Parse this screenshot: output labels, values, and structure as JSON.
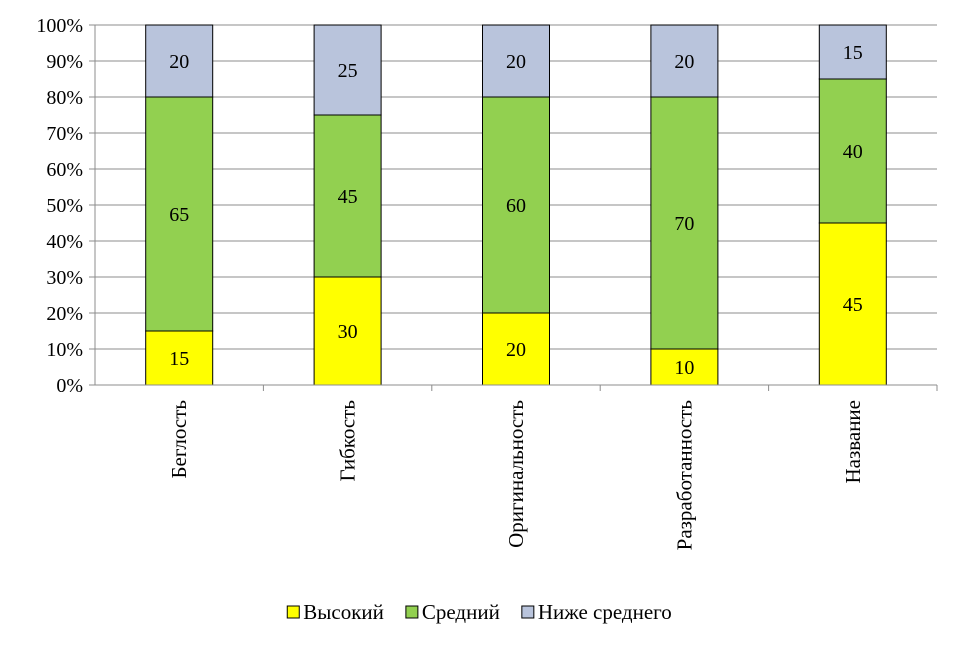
{
  "chart_data": {
    "type": "bar",
    "stacked": true,
    "categories": [
      "Беглость",
      "Гибкость",
      "Оригинальность",
      "Разработанность",
      "Название"
    ],
    "series": [
      {
        "name": "Высокий",
        "color": "#ffff00",
        "values": [
          15,
          30,
          20,
          10,
          45
        ]
      },
      {
        "name": "Средний",
        "color": "#92d050",
        "values": [
          65,
          45,
          60,
          70,
          40
        ]
      },
      {
        "name": "Ниже среднего",
        "color": "#b9c4dc",
        "values": [
          20,
          25,
          20,
          20,
          15
        ]
      }
    ],
    "yticks": [
      "0%",
      "10%",
      "20%",
      "30%",
      "40%",
      "50%",
      "60%",
      "70%",
      "80%",
      "90%",
      "100%"
    ],
    "ylim": [
      0,
      100
    ],
    "grid": true,
    "legend": "bottom"
  }
}
